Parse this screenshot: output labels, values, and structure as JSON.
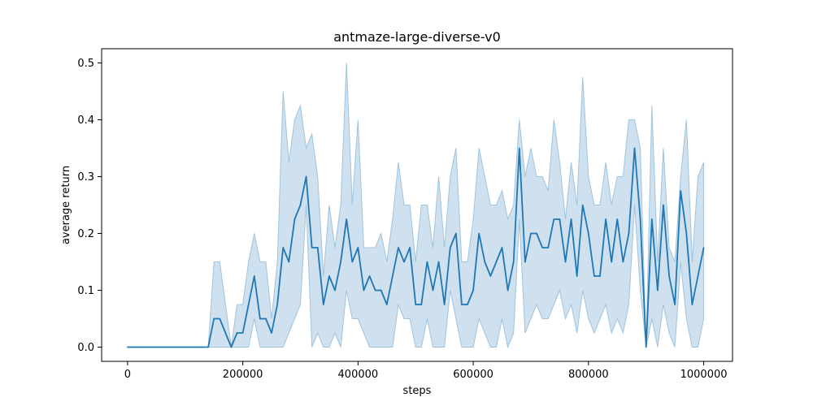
{
  "chart_data": {
    "type": "line",
    "title": "antmaze-large-diverse-v0",
    "xlabel": "steps",
    "ylabel": "average return",
    "xlim": [
      -45000,
      1050000
    ],
    "ylim": [
      -0.025,
      0.525
    ],
    "xticks": [
      0,
      200000,
      400000,
      600000,
      800000,
      1000000
    ],
    "xtick_labels": [
      "0",
      "200000",
      "400000",
      "600000",
      "800000",
      "1000000"
    ],
    "yticks": [
      0.0,
      0.1,
      0.2,
      0.3,
      0.4,
      0.5
    ],
    "ytick_labels": [
      "0.0",
      "0.1",
      "0.2",
      "0.3",
      "0.4",
      "0.5"
    ],
    "grid": false,
    "series": [
      {
        "color": "#1f77b4",
        "band_color": "#9fc4de",
        "x": [
          0,
          10000,
          20000,
          30000,
          40000,
          50000,
          60000,
          70000,
          80000,
          90000,
          100000,
          110000,
          120000,
          130000,
          140000,
          150000,
          160000,
          170000,
          180000,
          190000,
          200000,
          210000,
          220000,
          230000,
          240000,
          250000,
          260000,
          270000,
          280000,
          290000,
          300000,
          310000,
          320000,
          330000,
          340000,
          350000,
          360000,
          370000,
          380000,
          390000,
          400000,
          410000,
          420000,
          430000,
          440000,
          450000,
          460000,
          470000,
          480000,
          490000,
          500000,
          510000,
          520000,
          530000,
          540000,
          550000,
          560000,
          570000,
          580000,
          590000,
          600000,
          610000,
          620000,
          630000,
          640000,
          650000,
          660000,
          670000,
          680000,
          690000,
          700000,
          710000,
          720000,
          730000,
          740000,
          750000,
          760000,
          770000,
          780000,
          790000,
          800000,
          810000,
          820000,
          830000,
          840000,
          850000,
          860000,
          870000,
          880000,
          890000,
          900000,
          910000,
          920000,
          930000,
          940000,
          950000,
          960000,
          970000,
          980000,
          990000,
          1000000
        ],
        "y": [
          0,
          0,
          0,
          0,
          0,
          0,
          0,
          0,
          0,
          0,
          0,
          0,
          0,
          0,
          0,
          0.05,
          0.05,
          0.025,
          0,
          0.025,
          0.025,
          0.075,
          0.125,
          0.05,
          0.05,
          0.025,
          0.075,
          0.175,
          0.15,
          0.225,
          0.25,
          0.3,
          0.175,
          0.175,
          0.075,
          0.125,
          0.1,
          0.15,
          0.225,
          0.15,
          0.175,
          0.1,
          0.125,
          0.1,
          0.1,
          0.075,
          0.125,
          0.175,
          0.15,
          0.175,
          0.075,
          0.075,
          0.15,
          0.1,
          0.15,
          0.075,
          0.175,
          0.2,
          0.075,
          0.075,
          0.1,
          0.2,
          0.15,
          0.125,
          0.15,
          0.175,
          0.1,
          0.15,
          0.35,
          0.15,
          0.2,
          0.2,
          0.175,
          0.175,
          0.225,
          0.225,
          0.15,
          0.225,
          0.125,
          0.25,
          0.2,
          0.125,
          0.125,
          0.225,
          0.15,
          0.225,
          0.15,
          0.2,
          0.35,
          0.225,
          0,
          0.225,
          0.1,
          0.25,
          0.125,
          0.075,
          0.275,
          0.2,
          0.075,
          0.125,
          0.175
        ],
        "lower": [
          0,
          0,
          0,
          0,
          0,
          0,
          0,
          0,
          0,
          0,
          0,
          0,
          0,
          0,
          0,
          0,
          0,
          0,
          0,
          0,
          0,
          0,
          0.05,
          0,
          0,
          0,
          0,
          0,
          0.025,
          0.05,
          0.075,
          0.25,
          0,
          0.025,
          0,
          0,
          0.025,
          0,
          0.1,
          0.05,
          0.05,
          0.025,
          0,
          0,
          0,
          0,
          0,
          0.075,
          0.05,
          0.05,
          0,
          0,
          0.05,
          0,
          0,
          0,
          0.1,
          0.05,
          0,
          0,
          0,
          0.05,
          0.025,
          0,
          0,
          0.05,
          0,
          0.025,
          0.225,
          0.025,
          0.05,
          0.075,
          0.05,
          0.05,
          0.075,
          0.1,
          0.05,
          0.075,
          0.025,
          0.1,
          0.05,
          0.025,
          0.05,
          0.075,
          0.025,
          0.05,
          0.025,
          0.075,
          0.25,
          0.1,
          0,
          0.05,
          0,
          0.075,
          0.025,
          0,
          0.15,
          0.05,
          0,
          0,
          0.05
        ],
        "upper": [
          0,
          0,
          0,
          0,
          0,
          0,
          0,
          0,
          0,
          0,
          0,
          0,
          0,
          0,
          0,
          0.15,
          0.15,
          0.075,
          0,
          0.075,
          0.075,
          0.15,
          0.2,
          0.15,
          0.15,
          0.05,
          0.15,
          0.45,
          0.325,
          0.4,
          0.425,
          0.35,
          0.375,
          0.3,
          0.125,
          0.25,
          0.175,
          0.25,
          0.5,
          0.25,
          0.4,
          0.175,
          0.175,
          0.175,
          0.2,
          0.15,
          0.225,
          0.325,
          0.25,
          0.25,
          0.15,
          0.25,
          0.25,
          0.175,
          0.3,
          0.175,
          0.3,
          0.35,
          0.15,
          0.15,
          0.225,
          0.35,
          0.3,
          0.25,
          0.25,
          0.275,
          0.225,
          0.25,
          0.4,
          0.3,
          0.35,
          0.3,
          0.3,
          0.275,
          0.4,
          0.325,
          0.225,
          0.325,
          0.25,
          0.475,
          0.3,
          0.25,
          0.25,
          0.325,
          0.25,
          0.3,
          0.3,
          0.4,
          0.4,
          0.35,
          0,
          0.425,
          0.15,
          0.35,
          0.175,
          0.15,
          0.3,
          0.4,
          0.15,
          0.3,
          0.325
        ]
      }
    ]
  }
}
